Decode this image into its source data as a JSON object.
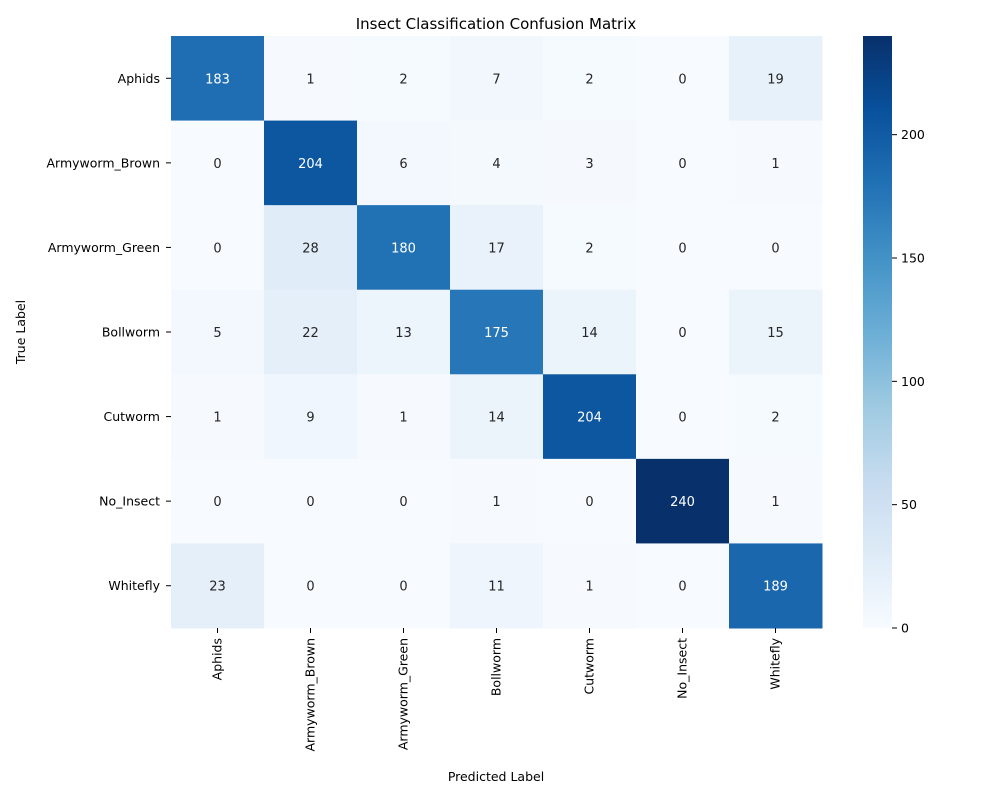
{
  "chart_data": {
    "type": "heatmap",
    "title": "Insect Classification Confusion Matrix",
    "xlabel": "Predicted Label",
    "ylabel": "True Label",
    "x_categories": [
      "Aphids",
      "Armyworm_Brown",
      "Armyworm_Green",
      "Bollworm",
      "Cutworm",
      "No_Insect",
      "Whitefly"
    ],
    "y_categories": [
      "Aphids",
      "Armyworm_Brown",
      "Armyworm_Green",
      "Bollworm",
      "Cutworm",
      "No_Insect",
      "Whitefly"
    ],
    "values": [
      [
        183,
        1,
        2,
        7,
        2,
        0,
        19
      ],
      [
        0,
        204,
        6,
        4,
        3,
        0,
        1
      ],
      [
        0,
        28,
        180,
        17,
        2,
        0,
        0
      ],
      [
        5,
        22,
        13,
        175,
        14,
        0,
        15
      ],
      [
        1,
        9,
        1,
        14,
        204,
        0,
        2
      ],
      [
        0,
        0,
        0,
        1,
        0,
        240,
        1
      ],
      [
        23,
        0,
        0,
        11,
        1,
        0,
        189
      ]
    ],
    "colorbar": {
      "colormap": "Blues",
      "vmin": 0,
      "vmax": 240,
      "ticks": [
        0,
        50,
        100,
        150,
        200
      ]
    },
    "annotations": true
  }
}
